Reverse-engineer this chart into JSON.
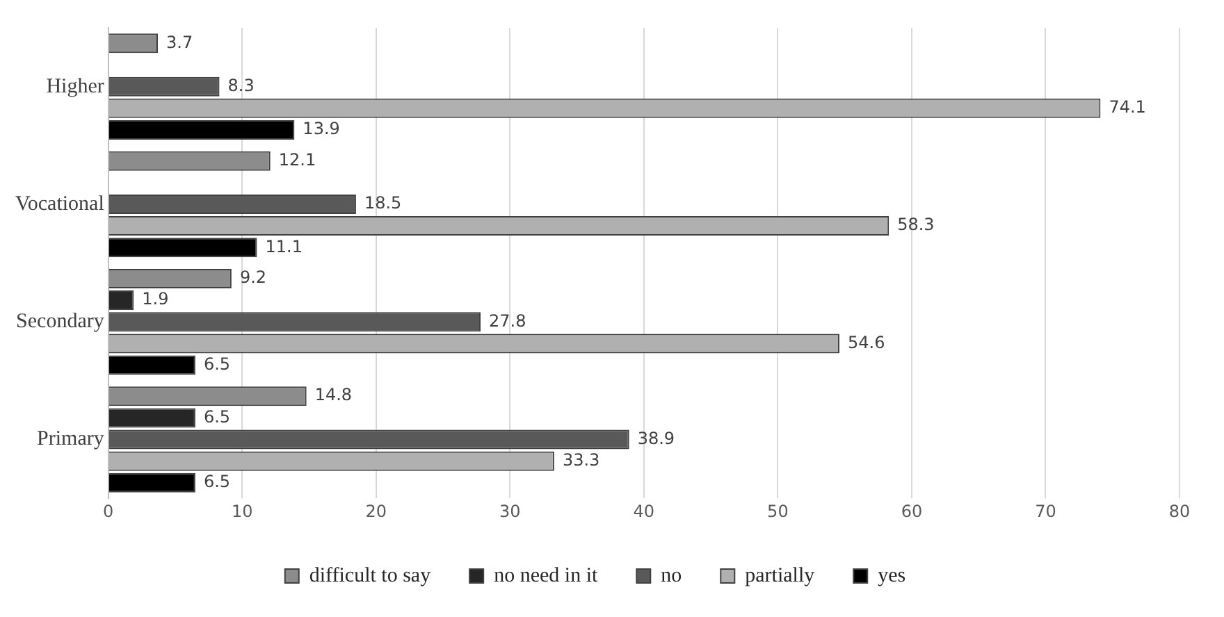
{
  "chart_data": {
    "type": "bar",
    "orientation": "horizontal",
    "categories": [
      "Higher",
      "Vocational",
      "Secondary",
      "Primary"
    ],
    "series": [
      {
        "name": "difficult to say",
        "color": "#8c8c8c",
        "values": [
          3.7,
          12.1,
          9.2,
          14.8
        ]
      },
      {
        "name": "no need in it",
        "color": "#262626",
        "values": [
          null,
          null,
          1.9,
          6.5
        ]
      },
      {
        "name": "no",
        "color": "#595959",
        "values": [
          8.3,
          18.5,
          27.8,
          38.9
        ]
      },
      {
        "name": "partially",
        "color": "#b0b0b0",
        "values": [
          74.1,
          58.3,
          54.6,
          33.3
        ]
      },
      {
        "name": "yes",
        "color": "#000000",
        "values": [
          13.9,
          11.1,
          6.5,
          6.5
        ]
      }
    ],
    "xlim": [
      0,
      80
    ],
    "xticks": [
      0,
      10,
      20,
      30,
      40,
      50,
      60,
      70,
      80
    ],
    "grid": "x",
    "legend": "bottom",
    "data_labels": true
  }
}
